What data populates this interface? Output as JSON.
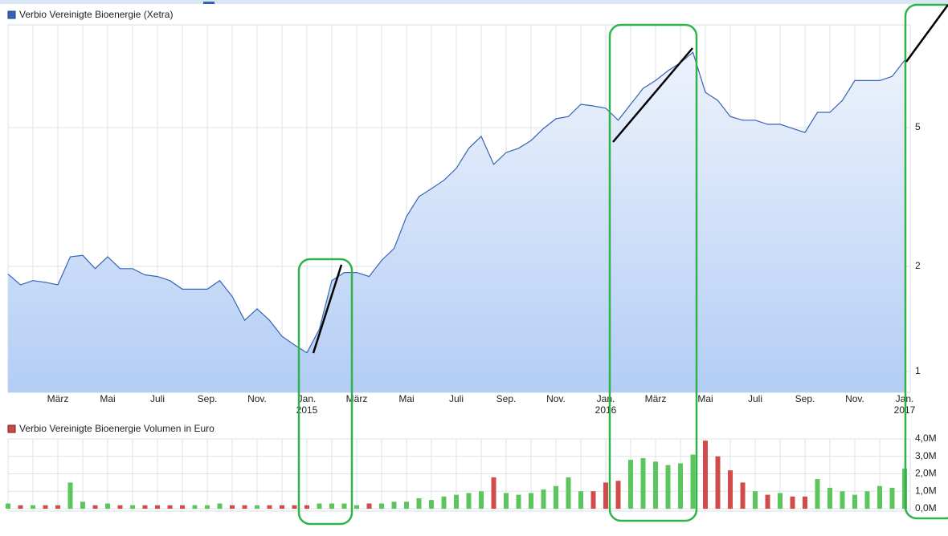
{
  "chart_data": [
    {
      "type": "area",
      "title": "Verbio Vereinigte Bioenergie (Xetra)",
      "color": "#3563b5",
      "log_scale": true,
      "grid": true,
      "categories": [
        null,
        null,
        null,
        null,
        "März",
        null,
        null,
        null,
        "Mai",
        null,
        null,
        null,
        "Juli",
        null,
        null,
        null,
        "Sep.",
        null,
        null,
        null,
        "Nov.",
        null,
        null,
        null,
        "Jan.",
        null,
        null,
        null,
        "März",
        null,
        null,
        null,
        "Mai",
        null,
        null,
        null,
        "Juli",
        null,
        null,
        null,
        "Sep.",
        null,
        null,
        null,
        "Nov.",
        null,
        null,
        null,
        "Jan.",
        null,
        null,
        null,
        "März",
        null,
        null,
        null,
        "Mai",
        null,
        null,
        null,
        "Juli",
        null,
        null,
        null,
        "Sep.",
        null,
        null,
        null,
        "Nov.",
        null,
        null,
        null,
        "Jan."
      ],
      "category_years": [
        null,
        null,
        null,
        null,
        null,
        null,
        null,
        null,
        null,
        null,
        null,
        null,
        null,
        null,
        null,
        null,
        null,
        null,
        null,
        null,
        null,
        null,
        null,
        null,
        "2015",
        null,
        null,
        null,
        null,
        null,
        null,
        null,
        null,
        null,
        null,
        null,
        null,
        null,
        null,
        null,
        null,
        null,
        null,
        null,
        null,
        null,
        null,
        null,
        "2016",
        null,
        null,
        null,
        null,
        null,
        null,
        null,
        null,
        null,
        null,
        null,
        null,
        null,
        null,
        null,
        null,
        null,
        null,
        null,
        null,
        null,
        null,
        null,
        "2017"
      ],
      "values": [
        1.9,
        1.77,
        1.82,
        1.8,
        1.77,
        2.13,
        2.15,
        1.97,
        2.13,
        1.97,
        1.97,
        1.89,
        1.87,
        1.82,
        1.72,
        1.72,
        1.72,
        1.82,
        1.64,
        1.4,
        1.51,
        1.4,
        1.26,
        1.19,
        1.13,
        1.32,
        1.82,
        1.92,
        1.92,
        1.87,
        2.08,
        2.25,
        2.78,
        3.17,
        3.34,
        3.53,
        3.82,
        4.36,
        4.72,
        3.92,
        4.24,
        4.36,
        4.59,
        4.97,
        5.3,
        5.38,
        5.83,
        5.77,
        5.68,
        5.25,
        5.83,
        6.48,
        6.82,
        7.28,
        7.67,
        8.22,
        6.31,
        5.98,
        5.38,
        5.25,
        5.25,
        5.11,
        5.11,
        4.97,
        4.84,
        5.53,
        5.53,
        5.98,
        6.82,
        6.82,
        6.82,
        7.01,
        7.8
      ],
      "ylim": [
        0.87,
        9.8
      ],
      "yticks": [
        1,
        2,
        5
      ]
    },
    {
      "type": "bar",
      "title": "Verbio Vereinigte Bioenergie Volumen in Euro",
      "color": "#c94a4a",
      "up_color": "#5cc65c",
      "down_color": "#d24b4b",
      "grid": true,
      "values": [
        0.3,
        0.2,
        0.2,
        0.2,
        0.2,
        1.5,
        0.4,
        0.2,
        0.3,
        0.2,
        0.2,
        0.2,
        0.2,
        0.2,
        0.2,
        0.2,
        0.2,
        0.3,
        0.2,
        0.2,
        0.2,
        0.2,
        0.2,
        0.2,
        0.2,
        0.3,
        0.3,
        0.3,
        0.2,
        0.3,
        0.3,
        0.4,
        0.4,
        0.6,
        0.5,
        0.7,
        0.8,
        0.9,
        1.0,
        1.8,
        0.9,
        0.8,
        0.9,
        1.1,
        1.3,
        1.8,
        1.0,
        1.0,
        1.5,
        1.6,
        2.8,
        2.9,
        2.7,
        2.5,
        2.6,
        3.1,
        3.9,
        3.0,
        2.2,
        1.5,
        1.0,
        0.8,
        0.9,
        0.7,
        0.7,
        1.7,
        1.2,
        1.0,
        0.8,
        1.0,
        1.3,
        1.2,
        2.3
      ],
      "ylim": [
        0,
        4.0
      ],
      "yticks": [
        {
          "value": 0,
          "label": "0,0M"
        },
        {
          "value": 1,
          "label": "1,0M"
        },
        {
          "value": 2,
          "label": "2,0M"
        },
        {
          "value": 3,
          "label": "3,0M"
        },
        {
          "value": 4,
          "label": "4,0M"
        }
      ]
    }
  ]
}
